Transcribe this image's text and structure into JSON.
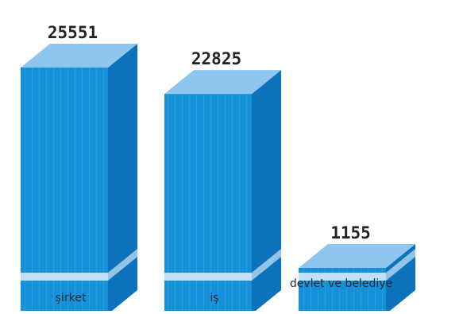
{
  "header_text": "",
  "colors": {
    "front": "#1591d9",
    "front_stripe": "#1383c8",
    "top": "#8ec6ef",
    "side": "#0b72bb",
    "band": "#bfe0f6",
    "label": "#1f2a36"
  },
  "chart_data": {
    "type": "bar",
    "style": "3d",
    "title": "",
    "xlabel": "",
    "ylabel": "",
    "categories": [
      "şirket",
      "iş",
      "devlet ve belediye"
    ],
    "values": [
      25551,
      22825,
      1155
    ],
    "value_labels": [
      "25551",
      "22825",
      "1155"
    ],
    "ylim": [
      0,
      25551
    ],
    "grid": false,
    "legend": "none"
  }
}
